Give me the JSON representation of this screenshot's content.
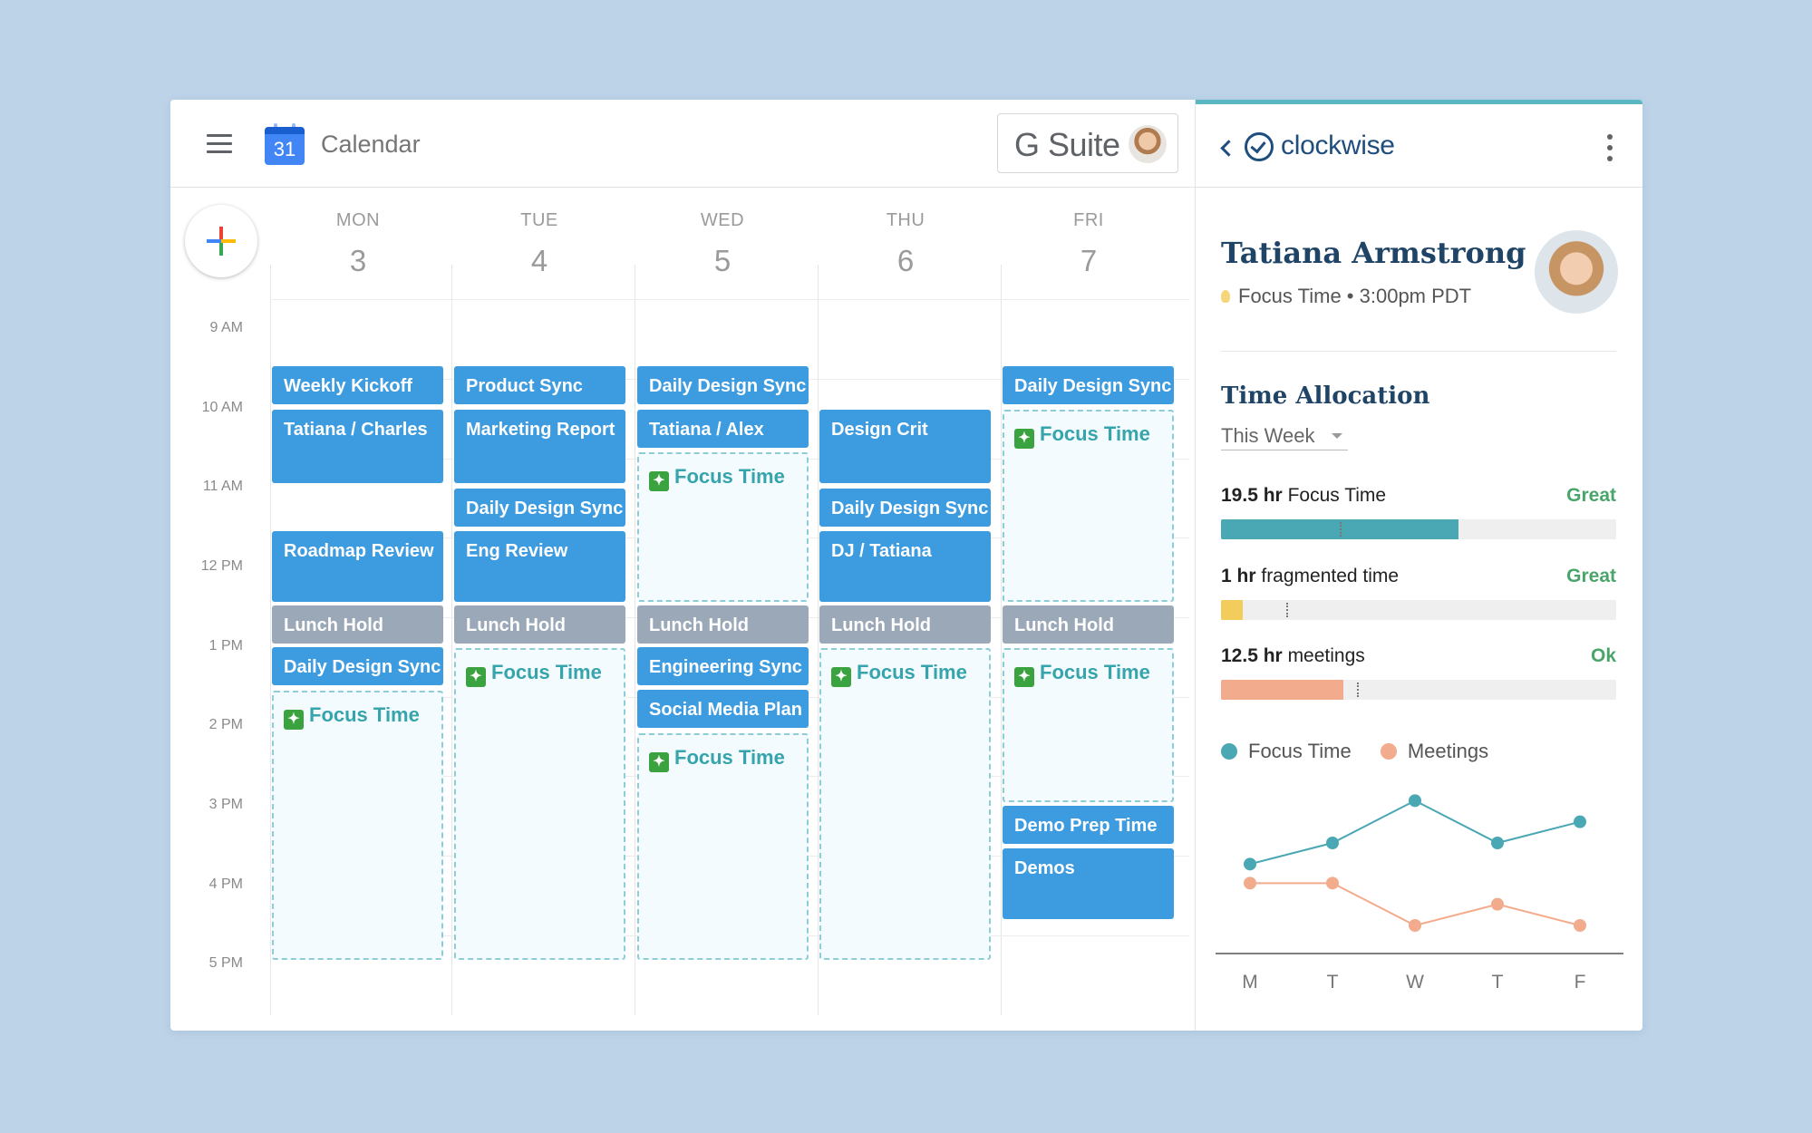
{
  "header": {
    "app_title": "Calendar",
    "logo_day": "31",
    "gsuite_label": "G Suite"
  },
  "time_labels": [
    "9 AM",
    "10 AM",
    "11 AM",
    "12 PM",
    "1 PM",
    "2 PM",
    "3 PM",
    "4 PM",
    "5 PM"
  ],
  "days": [
    {
      "dow": "MON",
      "num": "3"
    },
    {
      "dow": "TUE",
      "num": "4"
    },
    {
      "dow": "WED",
      "num": "5"
    },
    {
      "dow": "THU",
      "num": "6"
    },
    {
      "dow": "FRI",
      "num": "7"
    }
  ],
  "events": {
    "mon": [
      "Weekly Kickoff",
      "Tatiana / Charles",
      "Roadmap Review",
      "Lunch Hold",
      "Daily Design Sync",
      "Focus Time"
    ],
    "tue": [
      "Product Sync",
      "Marketing Report",
      "Daily Design Sync",
      "Eng Review",
      "Lunch Hold",
      "Focus Time"
    ],
    "wed": [
      "Daily Design Sync",
      "Tatiana / Alex",
      "Focus Time",
      "Lunch Hold",
      "Engineering Sync",
      "Social Media Plan",
      "Focus Time"
    ],
    "thu": [
      "Design Crit",
      "Daily Design Sync",
      "DJ / Tatiana",
      "Lunch Hold",
      "Focus Time"
    ],
    "fri": [
      "Daily Design Sync",
      "Focus Time",
      "Lunch Hold",
      "Focus Time",
      "Demo Prep Time",
      "Demos"
    ]
  },
  "clockwise": {
    "brand": "clockwise",
    "user_name": "Tatiana Armstrong",
    "user_status": "Focus Time • 3:00pm PDT",
    "section_title": "Time Allocation",
    "range": "This Week",
    "metrics": [
      {
        "value": "19.5 hr",
        "label": "Focus Time",
        "rating": "Great",
        "fill": 0.6,
        "target": 0.3,
        "color": "#4aa7b4"
      },
      {
        "value": "1 hr",
        "label": "fragmented time",
        "rating": "Great",
        "fill": 0.055,
        "target": 0.165,
        "color": "#f2cd5c"
      },
      {
        "value": "12.5 hr",
        "label": "meetings",
        "rating": "Ok",
        "fill": 0.31,
        "target": 0.345,
        "color": "#f2ab8c"
      }
    ],
    "legend": [
      "Focus Time",
      "Meetings"
    ]
  },
  "colors": {
    "event_blue": "#3d9be0",
    "lunch_gray": "#9aa8b8",
    "focus_text": "#36a4ac",
    "rating_green": "#4aa56a",
    "brand_navy": "#1f4e7e"
  },
  "chart_data": {
    "type": "line",
    "categories": [
      "M",
      "T",
      "W",
      "T",
      "F"
    ],
    "series": [
      {
        "name": "Focus Time",
        "color": "#4aa7b4",
        "values": [
          3,
          4,
          6,
          4,
          5
        ]
      },
      {
        "name": "Meetings",
        "color": "#f2ab8c",
        "values": [
          2.1,
          2.1,
          0.1,
          1.1,
          0.1
        ]
      }
    ],
    "ylim": [
      -2,
      7
    ],
    "legend": "top-left"
  }
}
